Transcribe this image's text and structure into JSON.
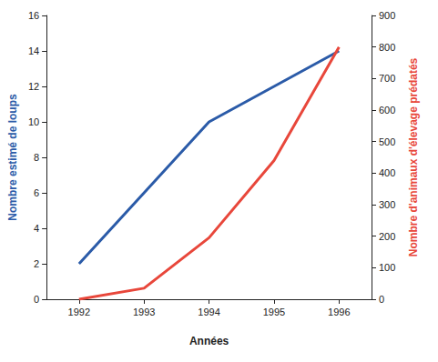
{
  "chart_data": {
    "type": "line",
    "xlabel": "Années",
    "ylabel": "Nombre estimé de loups",
    "y2label": "Nombre d'animaux d'élevage prédatés",
    "categories": [
      "1992",
      "1993",
      "1994",
      "1995",
      "1996"
    ],
    "series": [
      {
        "color": "#2b5ba8",
        "values": [
          2,
          6,
          10,
          12,
          14
        ]
      },
      {
        "color": "#e8473b",
        "values": [
          0,
          35,
          195,
          440,
          800
        ],
        "axis": "y2"
      }
    ],
    "ylim": [
      0,
      16
    ],
    "yticks": [
      0,
      2,
      4,
      6,
      8,
      10,
      12,
      14,
      16
    ],
    "y2lim": [
      0,
      900
    ],
    "y2ticks": [
      0,
      100,
      200,
      300,
      400,
      500,
      600,
      700,
      800,
      900
    ],
    "grid": false
  }
}
